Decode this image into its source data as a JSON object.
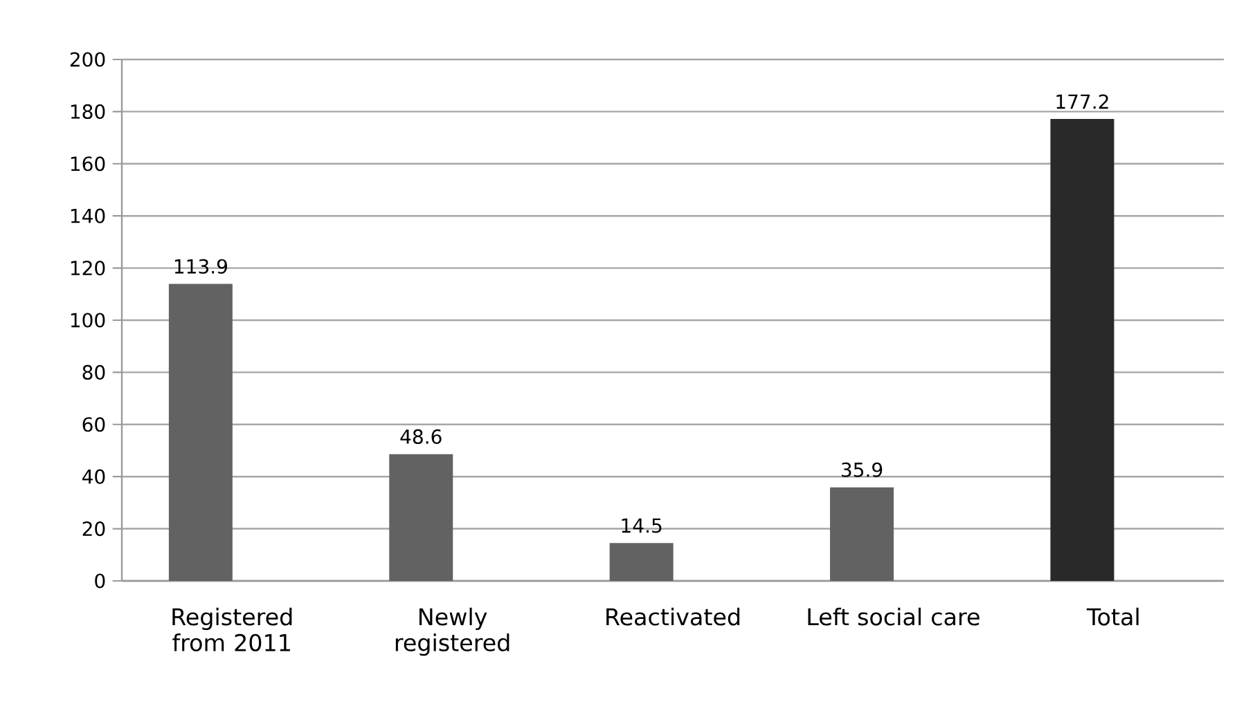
{
  "chart_data": {
    "type": "bar",
    "categories": [
      "Registered from  2011",
      "Newly registered",
      "Reactivated",
      "Left social care",
      "Total"
    ],
    "values": [
      113.9,
      48.6,
      14.5,
      35.9,
      177.2
    ],
    "colors": [
      "#626262",
      "#626262",
      "#626262",
      "#626262",
      "#292929"
    ],
    "ylim": [
      0,
      200
    ],
    "yticks": [
      0,
      20,
      40,
      60,
      80,
      100,
      120,
      140,
      160,
      180,
      200
    ],
    "grid": "y",
    "data_labels": true
  }
}
